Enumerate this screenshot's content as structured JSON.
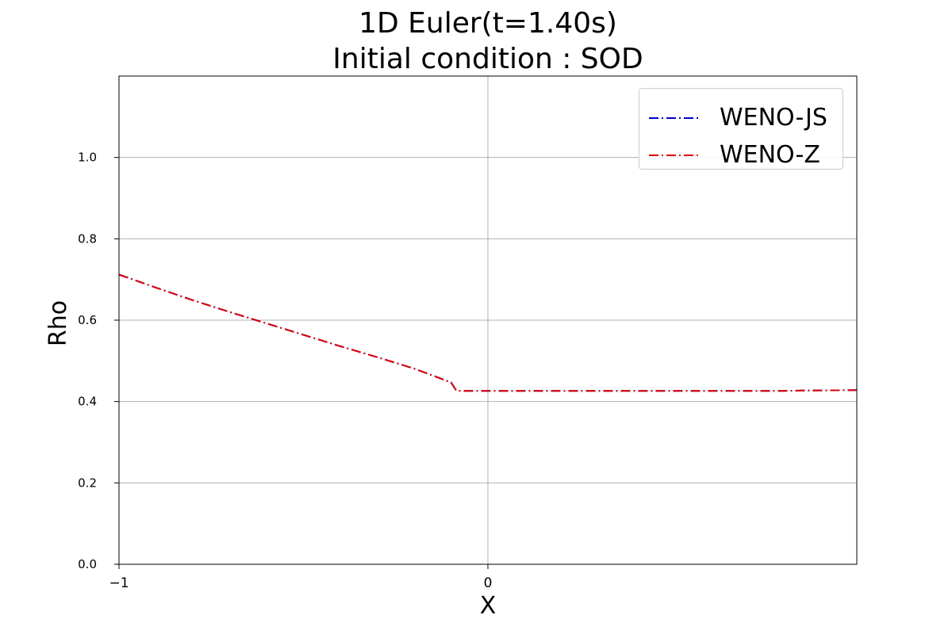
{
  "chart_data": {
    "type": "line",
    "title": "1D Euler(t=1.40s)",
    "subtitle": "Initial condition : SOD",
    "xlabel": "X",
    "ylabel": "Rho",
    "xlim": [
      -1,
      1
    ],
    "ylim": [
      0,
      1.2
    ],
    "x_ticks": [
      "−1",
      "0"
    ],
    "x_tick_values": [
      -1,
      0
    ],
    "y_ticks": [
      "0.0",
      "0.2",
      "0.4",
      "0.6",
      "0.8",
      "1.0"
    ],
    "y_tick_values": [
      0,
      0.2,
      0.4,
      0.6,
      0.8,
      1.0
    ],
    "grid": true,
    "legend_position": "top-right",
    "series": [
      {
        "name": "WENO-JS",
        "color": "#0000cc",
        "linestyle": "dashdot",
        "x": [
          -1.0,
          -0.9,
          -0.8,
          -0.7,
          -0.6,
          -0.5,
          -0.4,
          -0.3,
          -0.2,
          -0.1,
          -0.085,
          0.0,
          0.2,
          0.4,
          0.6,
          0.8,
          0.85,
          1.0
        ],
        "y": [
          0.712,
          0.68,
          0.649,
          0.62,
          0.592,
          0.564,
          0.536,
          0.509,
          0.481,
          0.447,
          0.426,
          0.426,
          0.426,
          0.426,
          0.426,
          0.426,
          0.427,
          0.428
        ]
      },
      {
        "name": "WENO-Z",
        "color": "#dd0000",
        "linestyle": "dashdot",
        "x": [
          -1.0,
          -0.9,
          -0.8,
          -0.7,
          -0.6,
          -0.5,
          -0.4,
          -0.3,
          -0.2,
          -0.1,
          -0.085,
          0.0,
          0.2,
          0.4,
          0.6,
          0.8,
          0.85,
          1.0
        ],
        "y": [
          0.712,
          0.68,
          0.649,
          0.62,
          0.592,
          0.564,
          0.536,
          0.509,
          0.481,
          0.447,
          0.426,
          0.426,
          0.426,
          0.426,
          0.426,
          0.426,
          0.427,
          0.428
        ]
      }
    ]
  }
}
